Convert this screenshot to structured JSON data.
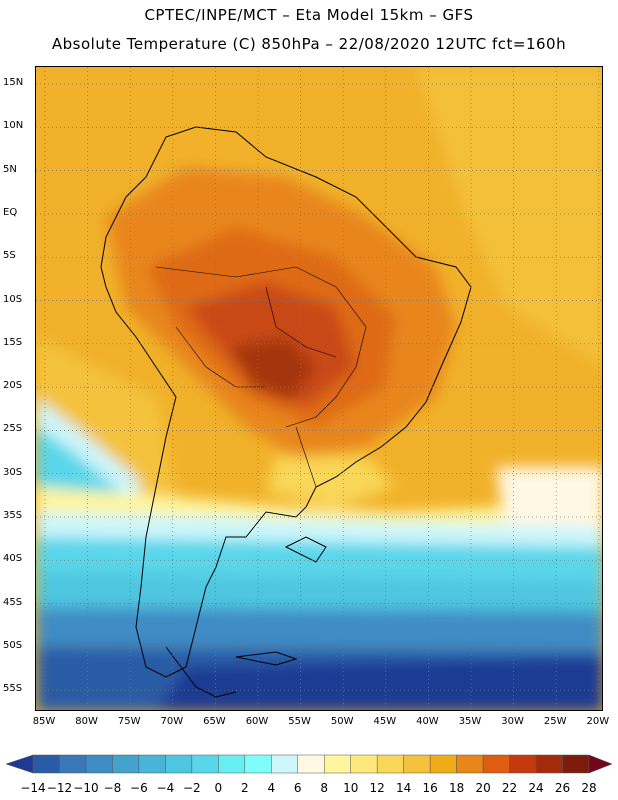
{
  "header": {
    "line1": "CPTEC/INPE/MCT –  Eta Model 15km – GFS",
    "line2": "Absolute Temperature (C) 850hPa – 22/08/2020 12UTC fct=160h"
  },
  "map": {
    "lat_labels": [
      "15N",
      "10N",
      "5N",
      "EQ",
      "5S",
      "10S",
      "15S",
      "20S",
      "25S",
      "30S",
      "35S",
      "40S",
      "45S",
      "50S",
      "55S"
    ],
    "lon_labels": [
      "85W",
      "80W",
      "75W",
      "70W",
      "65W",
      "60W",
      "55W",
      "50W",
      "45W",
      "40W",
      "35W",
      "30W",
      "25W",
      "20W"
    ],
    "gridlines": "dotted",
    "background_color": "#f1b12a"
  },
  "legend": {
    "labels": [
      "-14",
      "-12",
      "-10",
      "-8",
      "-6",
      "-4",
      "-2",
      "0",
      "2",
      "4",
      "6",
      "8",
      "10",
      "12",
      "14",
      "16",
      "18",
      "20",
      "22",
      "24",
      "26",
      "28"
    ],
    "colors": [
      "#1f3a93",
      "#2a5ba6",
      "#3a77b8",
      "#3f8cc4",
      "#44a3cd",
      "#48b4d7",
      "#4fc6e0",
      "#5ad6ea",
      "#66eef3",
      "#7efefb",
      "#cdf6fb",
      "#fff8e3",
      "#fff59e",
      "#fde97b",
      "#f9d758",
      "#f4c23c",
      "#f0ac18",
      "#e8861a",
      "#df5d11",
      "#c6390d",
      "#a52a0c",
      "#7d1c0c",
      "#73061f"
    ]
  }
}
